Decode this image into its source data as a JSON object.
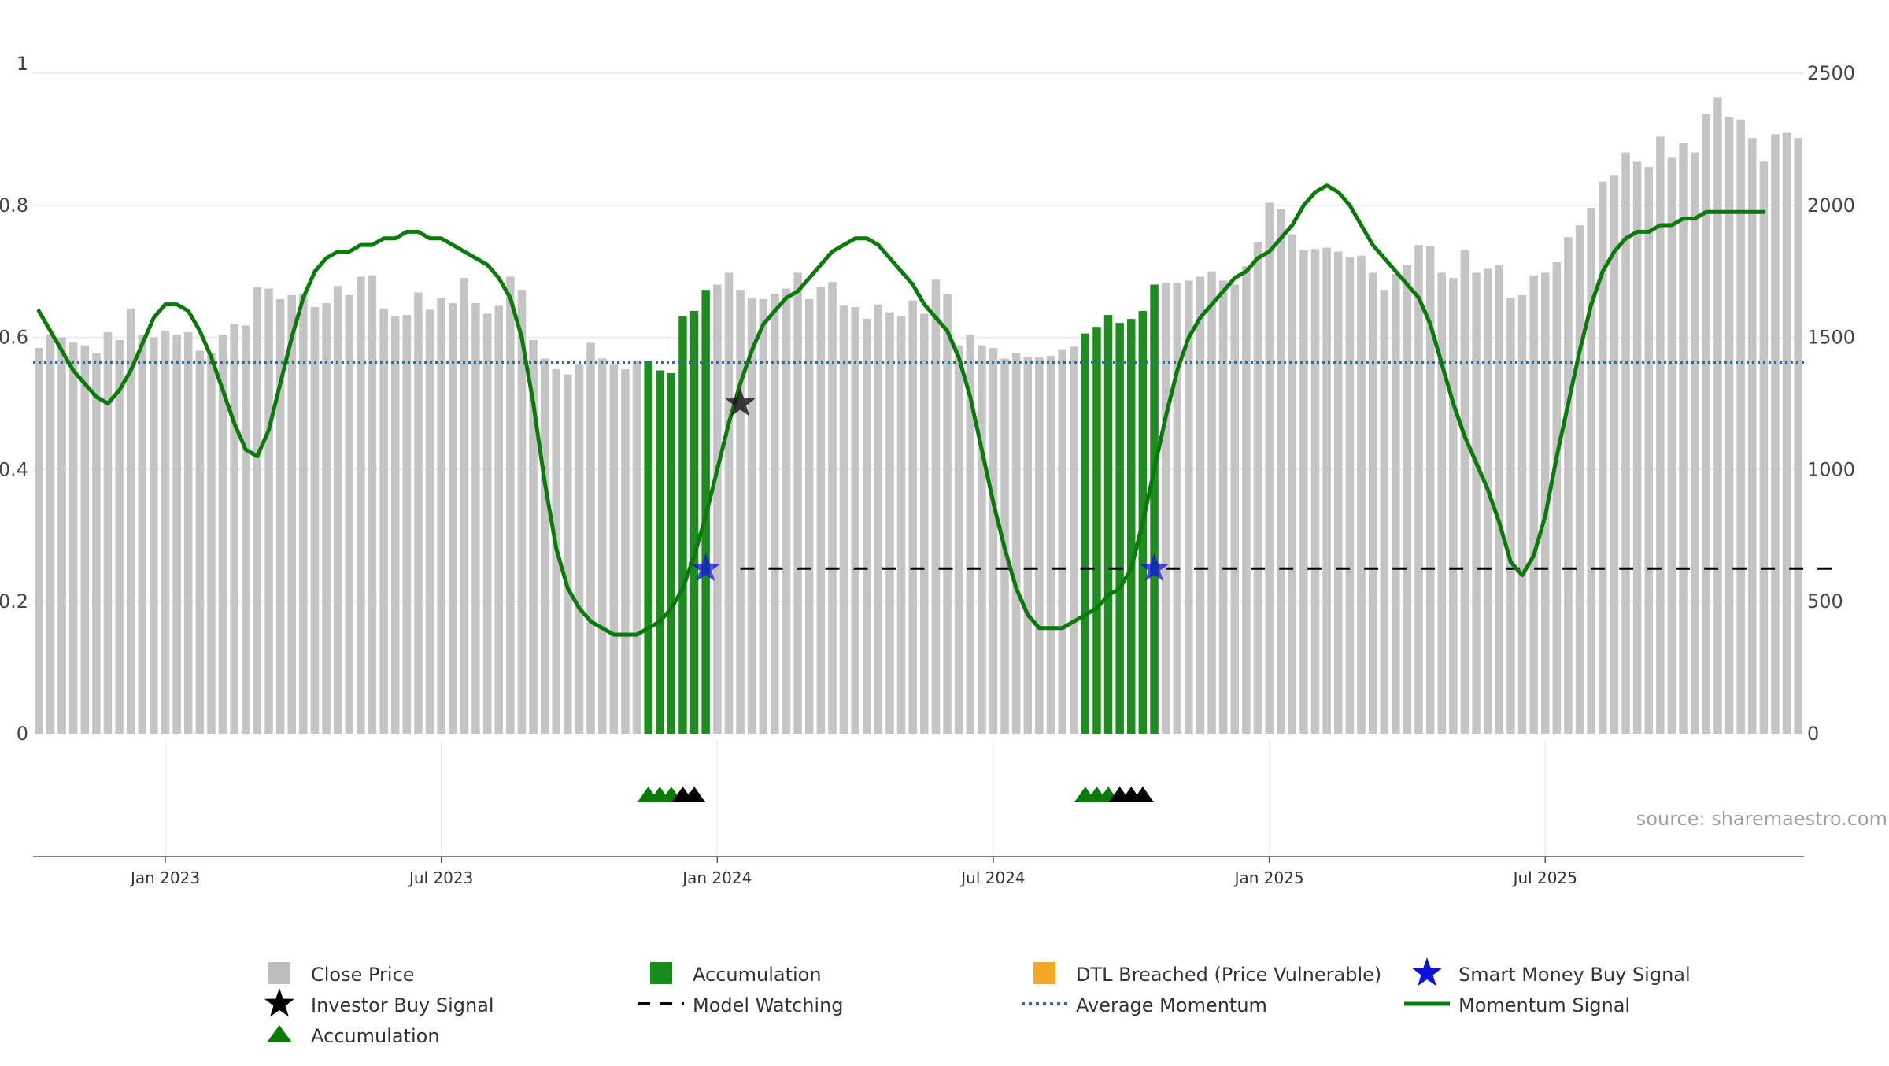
{
  "chart_data": {
    "type": "bar",
    "title": "",
    "source": "source: sharemaestro.com",
    "left_axis": {
      "ticks": [
        "0",
        "0.2",
        "0.4",
        "0.6",
        "0.8",
        "1"
      ],
      "ylim": [
        0,
        1
      ]
    },
    "right_axis": {
      "ticks": [
        "0",
        "500",
        "1000",
        "1500",
        "2000",
        "2500"
      ],
      "ylim": [
        0,
        2500
      ]
    },
    "x_axis": {
      "ticks": [
        "Jan 2023",
        "Jul 2023",
        "Jan 2024",
        "Jul 2024",
        "Jan 2025",
        "Jul 2025"
      ]
    },
    "grid": true,
    "legend": {
      "position": "bottom",
      "items": [
        {
          "label": "Close Price",
          "color": "#bdbdbd",
          "icon": "square"
        },
        {
          "label": "Accumulation",
          "color": "#1a8c1a",
          "icon": "square"
        },
        {
          "label": "DTL Breached (Price Vulnerable)",
          "color": "#f5a623",
          "icon": "square"
        },
        {
          "label": "Smart Money Buy Signal",
          "color": "#1010dd",
          "icon": "star"
        },
        {
          "label": "Investor Buy Signal",
          "color": "#000000",
          "icon": "star"
        },
        {
          "label": "Model Watching",
          "color": "#000000",
          "icon": "dash"
        },
        {
          "label": "Average Momentum",
          "color": "#2e6e9e",
          "icon": "dotted"
        },
        {
          "label": "Momentum Signal",
          "color": "#0a7a0a",
          "icon": "line"
        },
        {
          "label": "Accumulation",
          "color": "#0a7a0a",
          "icon": "triangle"
        }
      ]
    },
    "colors": {
      "close": "#c4c4c4",
      "accumulation": "#1e8c1e",
      "momentum": "#0a7a0a",
      "average": "#2e6e9e",
      "watching": "#000000"
    },
    "close_prices": [
      1460,
      1510,
      1500,
      1480,
      1470,
      1440,
      1520,
      1490,
      1610,
      1510,
      1500,
      1525,
      1510,
      1520,
      1450,
      1440,
      1510,
      1550,
      1545,
      1690,
      1685,
      1645,
      1660,
      1665,
      1615,
      1630,
      1695,
      1660,
      1730,
      1735,
      1610,
      1580,
      1585,
      1670,
      1605,
      1650,
      1630,
      1725,
      1630,
      1590,
      1620,
      1730,
      1680,
      1490,
      1420,
      1380,
      1360,
      1400,
      1480,
      1420,
      1400,
      1380,
      1410,
      1410,
      1375,
      1365,
      1580,
      1600,
      1680,
      1700,
      1745,
      1680,
      1650,
      1645,
      1665,
      1685,
      1745,
      1645,
      1690,
      1710,
      1620,
      1615,
      1570,
      1625,
      1595,
      1580,
      1640,
      1590,
      1720,
      1665,
      1470,
      1510,
      1470,
      1460,
      1420,
      1440,
      1425,
      1425,
      1430,
      1455,
      1465,
      1515,
      1540,
      1585,
      1555,
      1570,
      1600,
      1700,
      1705,
      1705,
      1715,
      1730,
      1750,
      1715,
      1700,
      1770,
      1860,
      2010,
      1985,
      1890,
      1830,
      1835,
      1840,
      1825,
      1805,
      1810,
      1745,
      1680,
      1740,
      1775,
      1850,
      1845,
      1745,
      1725,
      1830,
      1745,
      1760,
      1775,
      1650,
      1660,
      1735,
      1745,
      1785,
      1880,
      1925,
      1990,
      2090,
      2115,
      2200,
      2165,
      2145,
      2260,
      2180,
      2235,
      2200,
      2345,
      2410,
      2335,
      2325,
      2255,
      2165,
      2270,
      2275,
      2255
    ],
    "accumulation_ranges": [
      [
        53,
        58
      ],
      [
        91,
        97
      ]
    ],
    "momentum": [
      0.64,
      0.61,
      0.58,
      0.55,
      0.53,
      0.51,
      0.5,
      0.52,
      0.55,
      0.59,
      0.63,
      0.65,
      0.65,
      0.64,
      0.61,
      0.57,
      0.52,
      0.47,
      0.43,
      0.42,
      0.46,
      0.53,
      0.6,
      0.66,
      0.7,
      0.72,
      0.73,
      0.73,
      0.74,
      0.74,
      0.75,
      0.75,
      0.76,
      0.76,
      0.75,
      0.75,
      0.74,
      0.73,
      0.72,
      0.71,
      0.69,
      0.66,
      0.6,
      0.5,
      0.38,
      0.28,
      0.22,
      0.19,
      0.17,
      0.16,
      0.15,
      0.15,
      0.15,
      0.16,
      0.17,
      0.19,
      0.22,
      0.27,
      0.33,
      0.4,
      0.47,
      0.53,
      0.58,
      0.62,
      0.64,
      0.66,
      0.67,
      0.69,
      0.71,
      0.73,
      0.74,
      0.75,
      0.75,
      0.74,
      0.72,
      0.7,
      0.68,
      0.65,
      0.63,
      0.61,
      0.57,
      0.51,
      0.43,
      0.35,
      0.28,
      0.22,
      0.18,
      0.16,
      0.16,
      0.16,
      0.17,
      0.18,
      0.19,
      0.21,
      0.22,
      0.25,
      0.32,
      0.4,
      0.48,
      0.55,
      0.6,
      0.63,
      0.65,
      0.67,
      0.69,
      0.7,
      0.72,
      0.73,
      0.75,
      0.77,
      0.8,
      0.82,
      0.83,
      0.82,
      0.8,
      0.77,
      0.74,
      0.72,
      0.7,
      0.68,
      0.66,
      0.62,
      0.56,
      0.5,
      0.45,
      0.41,
      0.37,
      0.32,
      0.26,
      0.24,
      0.27,
      0.33,
      0.42,
      0.5,
      0.58,
      0.65,
      0.7,
      0.73,
      0.75,
      0.76,
      0.76,
      0.77,
      0.77,
      0.78,
      0.78,
      0.79,
      0.79,
      0.79,
      0.79,
      0.79,
      0.79
    ],
    "average_momentum": 0.562,
    "model_watching_level": 0.25,
    "model_watching_ranges": [
      [
        61,
        95
      ],
      [
        98,
        157
      ]
    ],
    "smart_money_signals": [
      {
        "index": 58,
        "value": 0.25
      },
      {
        "index": 97,
        "value": 0.25
      }
    ],
    "investor_signals": [
      {
        "index": 61,
        "value": 0.5
      }
    ],
    "accumulation_markers": [
      {
        "index": 53,
        "color": "green"
      },
      {
        "index": 54,
        "color": "green"
      },
      {
        "index": 55,
        "color": "green"
      },
      {
        "index": 56,
        "color": "black"
      },
      {
        "index": 57,
        "color": "black"
      },
      {
        "index": 91,
        "color": "green"
      },
      {
        "index": 92,
        "color": "green"
      },
      {
        "index": 93,
        "color": "green"
      },
      {
        "index": 94,
        "color": "black"
      },
      {
        "index": 95,
        "color": "black"
      },
      {
        "index": 96,
        "color": "black"
      }
    ]
  }
}
